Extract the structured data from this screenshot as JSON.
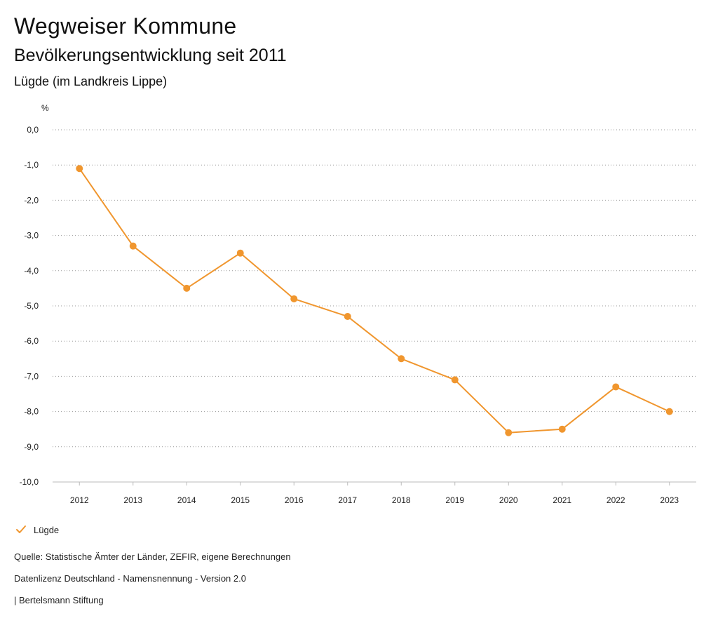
{
  "header": {
    "title": "Wegweiser Kommune",
    "subtitle": "Bevölkerungsentwicklung seit 2011",
    "place": "Lügde (im Landkreis Lippe)"
  },
  "legend": {
    "label": "Lügde"
  },
  "footer": {
    "source": "Quelle: Statistische Ämter der Länder, ZEFIR, eigene Berechnungen",
    "license": "Datenlizenz Deutschland - Namensnennung - Version 2.0",
    "publisher": "| Bertelsmann Stiftung"
  },
  "colors": {
    "series": "#F0962E",
    "grid": "#999999",
    "axis": "#bbbbbb"
  },
  "chart_data": {
    "type": "line",
    "title": "Bevölkerungsentwicklung seit 2011",
    "ylabel": "%",
    "xlabel": "",
    "categories": [
      "2012",
      "2013",
      "2014",
      "2015",
      "2016",
      "2017",
      "2018",
      "2019",
      "2020",
      "2021",
      "2022",
      "2023"
    ],
    "series": [
      {
        "name": "Lügde",
        "values": [
          -1.1,
          -3.3,
          -4.5,
          -3.5,
          -4.8,
          -5.3,
          -6.5,
          -7.1,
          -8.6,
          -8.5,
          -7.3,
          -8.0
        ]
      }
    ],
    "ylim": [
      -10,
      0
    ],
    "yticks": [
      0,
      -1,
      -2,
      -3,
      -4,
      -5,
      -6,
      -7,
      -8,
      -9,
      -10
    ],
    "ytick_labels": [
      "0,0",
      "-1,0",
      "-2,0",
      "-3,0",
      "-4,0",
      "-5,0",
      "-6,0",
      "-7,0",
      "-8,0",
      "-9,0",
      "-10,0"
    ],
    "grid": true,
    "legend_position": "bottom-left"
  }
}
